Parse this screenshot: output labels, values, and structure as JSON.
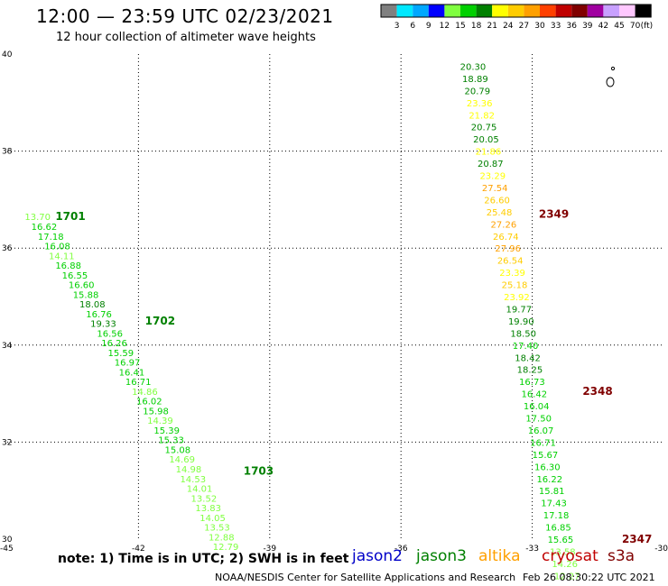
{
  "chart_data": {
    "type": "scatter",
    "title": "12:00 — 23:59 UTC 02/23/2021",
    "subtitle": "12 hour collection of altimeter wave heights",
    "xlim": [
      -45,
      -30
    ],
    "ylim": [
      30,
      40
    ],
    "x_ticks": [
      "-45",
      "-42",
      "-39",
      "-36",
      "-33",
      "-30"
    ],
    "y_ticks": [
      "30",
      "32",
      "34",
      "36",
      "38",
      "40"
    ],
    "grid": true,
    "colorbar": {
      "unit": "(ft)",
      "labels": [
        "3",
        "6",
        "9",
        "12",
        "15",
        "18",
        "21",
        "24",
        "27",
        "30",
        "33",
        "36",
        "39",
        "42",
        "45",
        "70"
      ],
      "colors": [
        "#808080",
        "#00e8ff",
        "#00a8ff",
        "#0000ff",
        "#80ff40",
        "#00d000",
        "#008000",
        "#ffff00",
        "#ffcc00",
        "#ffa000",
        "#ff4000",
        "#c00000",
        "#800000",
        "#a000a0",
        "#c8a0ff",
        "#ffc8ff",
        "#000000"
      ]
    },
    "passes": [
      {
        "label": "1701",
        "label_lon": -43.9,
        "label_lat": 36.65,
        "label_color": "#008000"
      },
      {
        "label": "1702",
        "label_lon": -41.85,
        "label_lat": 34.5,
        "label_color": "#008000"
      },
      {
        "label": "1703",
        "label_lon": -39.6,
        "label_lat": 31.4,
        "label_color": "#008000"
      },
      {
        "label": "2349",
        "label_lon": -32.85,
        "label_lat": 36.7,
        "label_color": "#800000"
      },
      {
        "label": "2348",
        "label_lon": -31.85,
        "label_lat": 33.05,
        "label_color": "#800000"
      },
      {
        "label": "2347",
        "label_lon": -30.95,
        "label_lat": 30.0,
        "label_color": "#800000"
      }
    ],
    "points": [
      {
        "lon": -44.6,
        "lat": 36.65,
        "swh": "13.70"
      },
      {
        "lon": -44.45,
        "lat": 36.45,
        "swh": "16.62"
      },
      {
        "lon": -44.3,
        "lat": 36.25,
        "swh": "17.18"
      },
      {
        "lon": -44.15,
        "lat": 36.05,
        "swh": "16.08"
      },
      {
        "lon": -44.05,
        "lat": 35.85,
        "swh": "14.11"
      },
      {
        "lon": -43.9,
        "lat": 35.65,
        "swh": "16.88"
      },
      {
        "lon": -43.75,
        "lat": 35.45,
        "swh": "16.55"
      },
      {
        "lon": -43.6,
        "lat": 35.25,
        "swh": "16.60"
      },
      {
        "lon": -43.5,
        "lat": 35.05,
        "swh": "15.88"
      },
      {
        "lon": -43.35,
        "lat": 34.85,
        "swh": "18.08"
      },
      {
        "lon": -43.2,
        "lat": 34.65,
        "swh": "16.76"
      },
      {
        "lon": -43.1,
        "lat": 34.45,
        "swh": "19.33"
      },
      {
        "lon": -42.95,
        "lat": 34.25,
        "swh": "16.56"
      },
      {
        "lon": -42.85,
        "lat": 34.05,
        "swh": "16.26"
      },
      {
        "lon": -42.7,
        "lat": 33.85,
        "swh": "15.59"
      },
      {
        "lon": -42.55,
        "lat": 33.65,
        "swh": "16.97"
      },
      {
        "lon": -42.45,
        "lat": 33.45,
        "swh": "16.41"
      },
      {
        "lon": -42.3,
        "lat": 33.25,
        "swh": "16.71"
      },
      {
        "lon": -42.15,
        "lat": 33.05,
        "swh": "14.86"
      },
      {
        "lon": -42.05,
        "lat": 32.85,
        "swh": "16.02"
      },
      {
        "lon": -41.9,
        "lat": 32.65,
        "swh": "15.98"
      },
      {
        "lon": -41.8,
        "lat": 32.45,
        "swh": "14.39"
      },
      {
        "lon": -41.65,
        "lat": 32.25,
        "swh": "15.39"
      },
      {
        "lon": -41.55,
        "lat": 32.05,
        "swh": "15.33"
      },
      {
        "lon": -41.4,
        "lat": 31.85,
        "swh": "15.08"
      },
      {
        "lon": -41.3,
        "lat": 31.65,
        "swh": "14.69"
      },
      {
        "lon": -41.15,
        "lat": 31.45,
        "swh": "14.98"
      },
      {
        "lon": -41.05,
        "lat": 31.25,
        "swh": "14.53"
      },
      {
        "lon": -40.9,
        "lat": 31.05,
        "swh": "14.01"
      },
      {
        "lon": -40.8,
        "lat": 30.85,
        "swh": "13.52"
      },
      {
        "lon": -40.7,
        "lat": 30.65,
        "swh": "13.83"
      },
      {
        "lon": -40.6,
        "lat": 30.45,
        "swh": "14.05"
      },
      {
        "lon": -40.5,
        "lat": 30.25,
        "swh": "13.53"
      },
      {
        "lon": -40.4,
        "lat": 30.05,
        "swh": "12.88"
      },
      {
        "lon": -40.3,
        "lat": 29.85,
        "swh": "12.79"
      },
      {
        "lon": -34.65,
        "lat": 39.75,
        "swh": "20.30"
      },
      {
        "lon": -34.6,
        "lat": 39.5,
        "swh": "18.89"
      },
      {
        "lon": -34.55,
        "lat": 39.25,
        "swh": "20.79"
      },
      {
        "lon": -34.5,
        "lat": 39.0,
        "swh": "23.36"
      },
      {
        "lon": -34.45,
        "lat": 38.75,
        "swh": "21.82"
      },
      {
        "lon": -34.4,
        "lat": 38.5,
        "swh": "20.75"
      },
      {
        "lon": -34.35,
        "lat": 38.25,
        "swh": "20.05"
      },
      {
        "lon": -34.3,
        "lat": 38.0,
        "swh": "21.86"
      },
      {
        "lon": -34.25,
        "lat": 37.75,
        "swh": "20.87"
      },
      {
        "lon": -34.2,
        "lat": 37.5,
        "swh": "23.29"
      },
      {
        "lon": -34.15,
        "lat": 37.25,
        "swh": "27.54"
      },
      {
        "lon": -34.1,
        "lat": 37.0,
        "swh": "26.60"
      },
      {
        "lon": -34.05,
        "lat": 36.75,
        "swh": "25.48"
      },
      {
        "lon": -33.95,
        "lat": 36.5,
        "swh": "27.26"
      },
      {
        "lon": -33.9,
        "lat": 36.25,
        "swh": "26.74"
      },
      {
        "lon": -33.85,
        "lat": 36.0,
        "swh": "27.96"
      },
      {
        "lon": -33.8,
        "lat": 35.75,
        "swh": "26.54"
      },
      {
        "lon": -33.75,
        "lat": 35.5,
        "swh": "23.39"
      },
      {
        "lon": -33.7,
        "lat": 35.25,
        "swh": "25.18"
      },
      {
        "lon": -33.65,
        "lat": 35.0,
        "swh": "23.92"
      },
      {
        "lon": -33.6,
        "lat": 34.75,
        "swh": "19.77"
      },
      {
        "lon": -33.55,
        "lat": 34.5,
        "swh": "19.90"
      },
      {
        "lon": -33.5,
        "lat": 34.25,
        "swh": "18.50"
      },
      {
        "lon": -33.45,
        "lat": 34.0,
        "swh": "17.40"
      },
      {
        "lon": -33.4,
        "lat": 33.75,
        "swh": "18.42"
      },
      {
        "lon": -33.35,
        "lat": 33.5,
        "swh": "18.25"
      },
      {
        "lon": -33.3,
        "lat": 33.25,
        "swh": "16.73"
      },
      {
        "lon": -33.25,
        "lat": 33.0,
        "swh": "16.42"
      },
      {
        "lon": -33.2,
        "lat": 32.75,
        "swh": "16.04"
      },
      {
        "lon": -33.15,
        "lat": 32.5,
        "swh": "17.50"
      },
      {
        "lon": -33.1,
        "lat": 32.25,
        "swh": "16.07"
      },
      {
        "lon": -33.05,
        "lat": 32.0,
        "swh": "16.71"
      },
      {
        "lon": -33.0,
        "lat": 31.75,
        "swh": "15.67"
      },
      {
        "lon": -32.95,
        "lat": 31.5,
        "swh": "16.30"
      },
      {
        "lon": -32.9,
        "lat": 31.25,
        "swh": "16.22"
      },
      {
        "lon": -32.85,
        "lat": 31.0,
        "swh": "15.81"
      },
      {
        "lon": -32.8,
        "lat": 30.75,
        "swh": "17.43"
      },
      {
        "lon": -32.75,
        "lat": 30.5,
        "swh": "17.18"
      },
      {
        "lon": -32.7,
        "lat": 30.25,
        "swh": "16.85"
      },
      {
        "lon": -32.65,
        "lat": 30.0,
        "swh": "15.65"
      },
      {
        "lon": -32.6,
        "lat": 29.75,
        "swh": "13.58"
      },
      {
        "lon": -32.55,
        "lat": 29.5,
        "swh": "14.26"
      },
      {
        "lon": -32.5,
        "lat": 29.25,
        "swh": "12.27"
      }
    ]
  },
  "footer": {
    "note": "note: 1) Time is in UTC; 2) SWH is in feet",
    "satellites": [
      {
        "name": "jason2",
        "color": "#0000c8"
      },
      {
        "name": "jason3",
        "color": "#008000"
      },
      {
        "name": "altika",
        "color": "#ffa000"
      },
      {
        "name": "cryosat",
        "color": "#c00000"
      },
      {
        "name": "s3a",
        "color": "#800000"
      }
    ],
    "credit": "NOAA/NESDIS Center for Satellite Applications and Research",
    "timestamp": "Feb 26 08:30:22 UTC 2021"
  }
}
